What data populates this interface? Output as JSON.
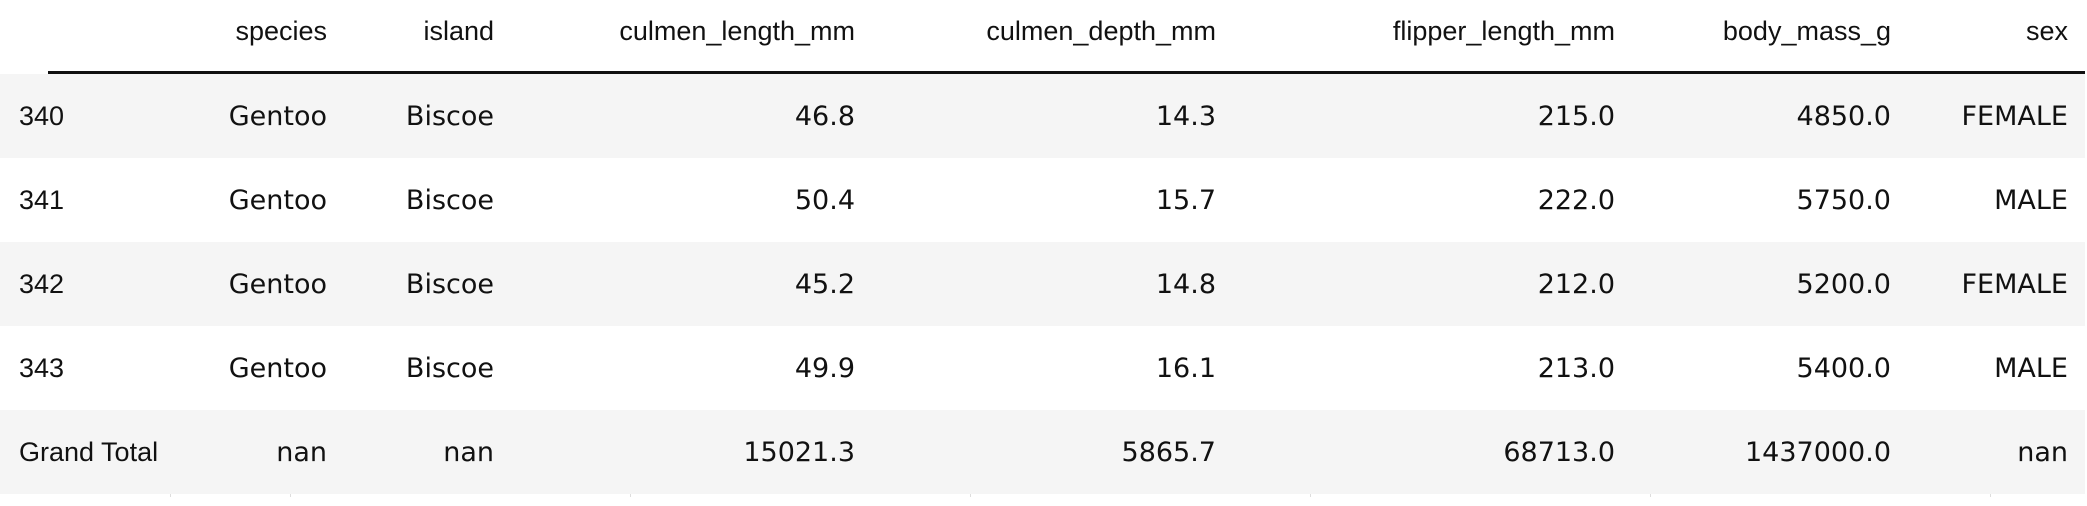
{
  "table": {
    "columns": [
      {
        "key": "index",
        "label": ""
      },
      {
        "key": "species",
        "label": "species"
      },
      {
        "key": "island",
        "label": "island"
      },
      {
        "key": "culmen_length_mm",
        "label": "culmen_length_mm"
      },
      {
        "key": "culmen_depth_mm",
        "label": "culmen_depth_mm"
      },
      {
        "key": "flipper_length_mm",
        "label": "flipper_length_mm"
      },
      {
        "key": "body_mass_g",
        "label": "body_mass_g"
      },
      {
        "key": "sex",
        "label": "sex"
      }
    ],
    "rows": [
      {
        "index": "340",
        "species": "Gentoo",
        "island": "Biscoe",
        "culmen_length_mm": "46.8",
        "culmen_depth_mm": "14.3",
        "flipper_length_mm": "215.0",
        "body_mass_g": "4850.0",
        "sex": "FEMALE"
      },
      {
        "index": "341",
        "species": "Gentoo",
        "island": "Biscoe",
        "culmen_length_mm": "50.4",
        "culmen_depth_mm": "15.7",
        "flipper_length_mm": "222.0",
        "body_mass_g": "5750.0",
        "sex": "MALE"
      },
      {
        "index": "342",
        "species": "Gentoo",
        "island": "Biscoe",
        "culmen_length_mm": "45.2",
        "culmen_depth_mm": "14.8",
        "flipper_length_mm": "212.0",
        "body_mass_g": "5200.0",
        "sex": "FEMALE"
      },
      {
        "index": "343",
        "species": "Gentoo",
        "island": "Biscoe",
        "culmen_length_mm": "49.9",
        "culmen_depth_mm": "16.1",
        "flipper_length_mm": "213.0",
        "body_mass_g": "5400.0",
        "sex": "MALE"
      },
      {
        "index": "Grand Total",
        "species": "nan",
        "island": "nan",
        "culmen_length_mm": "15021.3",
        "culmen_depth_mm": "5865.7",
        "flipper_length_mm": "68713.0",
        "body_mass_g": "1437000.0",
        "sex": "nan"
      }
    ]
  },
  "colors": {
    "row_shade": "#f5f5f5",
    "text": "#111111",
    "header_rule": "#111111"
  }
}
